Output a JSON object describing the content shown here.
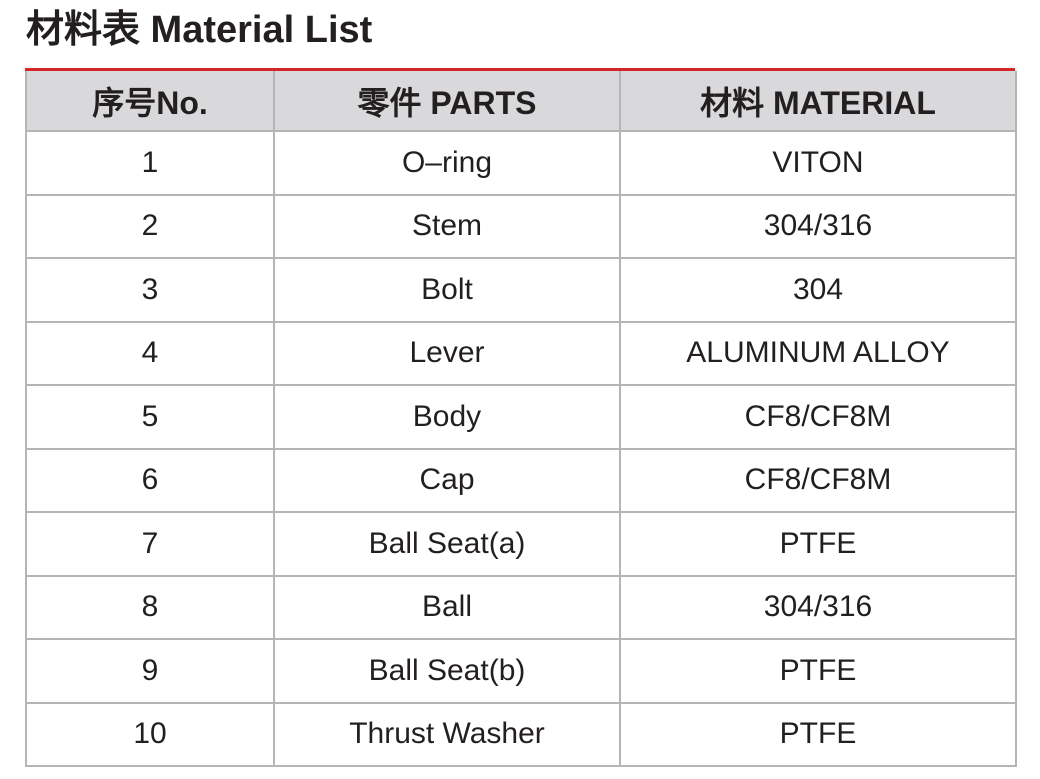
{
  "title": "材料表 Material List",
  "table": {
    "headers": [
      "序号No.",
      "零件 PARTS",
      "材料 MATERIAL"
    ],
    "rows": [
      [
        "1",
        "O–ring",
        "VITON"
      ],
      [
        "2",
        "Stem",
        "304/316"
      ],
      [
        "3",
        "Bolt",
        "304"
      ],
      [
        "4",
        "Lever",
        "ALUMINUM ALLOY"
      ],
      [
        "5",
        "Body",
        "CF8/CF8M"
      ],
      [
        "6",
        "Cap",
        "CF8/CF8M"
      ],
      [
        "7",
        "Ball Seat(a)",
        "PTFE"
      ],
      [
        "8",
        "Ball",
        "304/316"
      ],
      [
        "9",
        "Ball Seat(b)",
        "PTFE"
      ],
      [
        "10",
        "Thrust Washer",
        "PTFE"
      ]
    ]
  },
  "colors": {
    "accent_rule": "#d3262a",
    "header_background": "#d9d9db",
    "grid_lines": "#b5b5b5",
    "text": "#231f20"
  }
}
